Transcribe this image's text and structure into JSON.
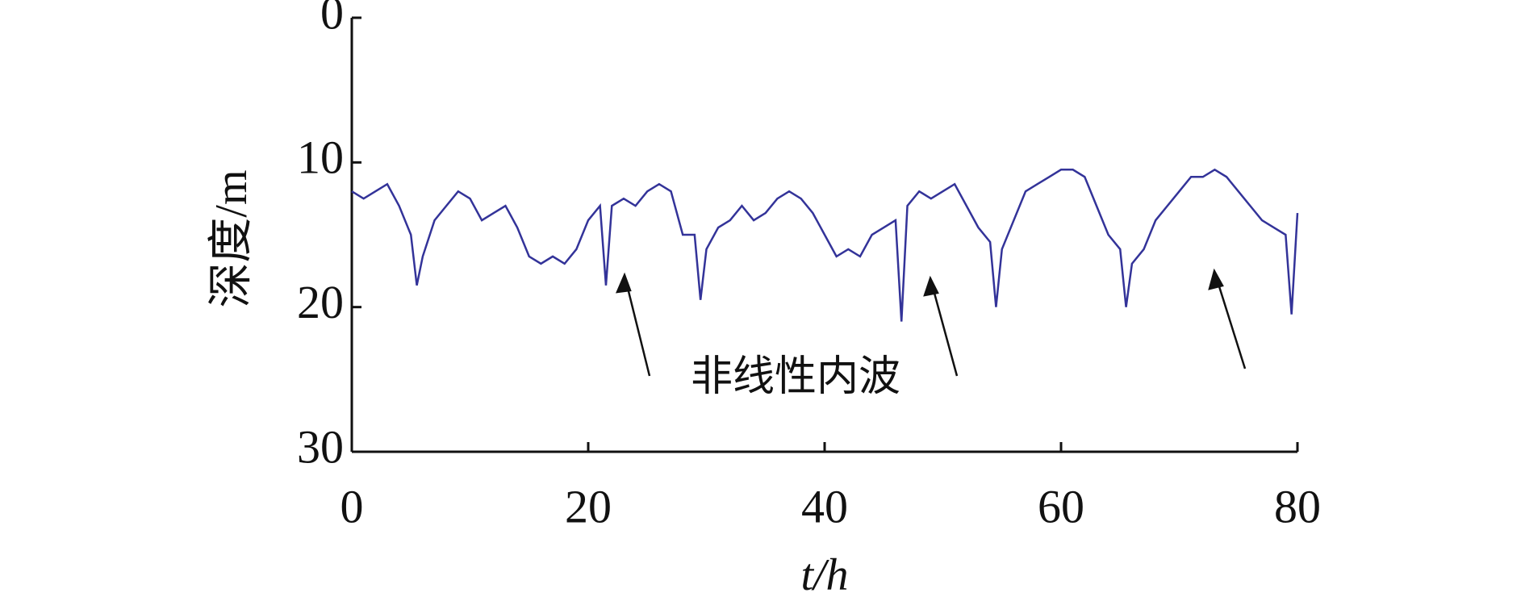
{
  "chart_data": {
    "type": "line",
    "x_label": "t/h",
    "y_label": "深度/m",
    "annotation": "非线性内波",
    "xlim": [
      0,
      80
    ],
    "xticks": [
      0,
      20,
      40,
      60,
      80
    ],
    "ylim": [
      0,
      30
    ],
    "yticks": [
      0,
      10,
      20,
      30
    ],
    "y_inverted": true,
    "x": [
      0,
      1,
      2,
      3,
      4,
      5,
      5.5,
      6,
      7,
      8,
      9,
      10,
      11,
      12,
      13,
      14,
      15,
      16,
      17,
      18,
      19,
      20,
      21,
      21.5,
      22,
      23,
      24,
      25,
      26,
      27,
      28,
      29,
      29.5,
      30,
      31,
      32,
      33,
      34,
      35,
      36,
      37,
      38,
      39,
      40,
      41,
      42,
      43,
      44,
      45,
      46,
      46.5,
      47,
      48,
      49,
      50,
      51,
      52,
      53,
      54,
      54.5,
      55,
      56,
      57,
      58,
      59,
      60,
      61,
      62,
      63,
      64,
      65,
      65.5,
      66,
      67,
      68,
      69,
      70,
      71,
      72,
      73,
      74,
      75,
      76,
      77,
      78,
      79,
      79.5,
      80
    ],
    "series": [
      {
        "name": "depth",
        "color": "#333399",
        "values": [
          12,
          12.5,
          12,
          11.5,
          13,
          15,
          18.5,
          16.5,
          14,
          13,
          12,
          12.5,
          14,
          13.5,
          13,
          14.5,
          16.5,
          17,
          16.5,
          17,
          16,
          14,
          13,
          18.5,
          13,
          12.5,
          13,
          12,
          11.5,
          12,
          15,
          15,
          19.5,
          16,
          14.5,
          14,
          13,
          14,
          13.5,
          12.5,
          12,
          12.5,
          13.5,
          15,
          16.5,
          16,
          16.5,
          15,
          14.5,
          14,
          21,
          13,
          12,
          12.5,
          12,
          11.5,
          13,
          14.5,
          15.5,
          20,
          16,
          14,
          12,
          11.5,
          11,
          10.5,
          10.5,
          11,
          13,
          15,
          16,
          20,
          17,
          16,
          14,
          13,
          12,
          11,
          11,
          10.5,
          11,
          12,
          13,
          14,
          14.5,
          15,
          20.5,
          13.5
        ]
      }
    ]
  }
}
